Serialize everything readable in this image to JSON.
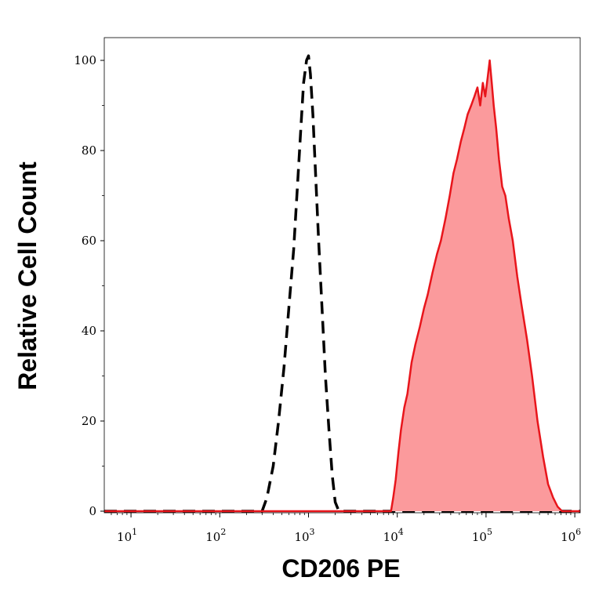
{
  "chart_data": {
    "type": "area",
    "xlabel": "CD206 PE",
    "ylabel": "Relative Cell Count",
    "x_scale": "log",
    "xlim": [
      5,
      1150000
    ],
    "ylim": [
      0,
      100
    ],
    "x_ticks": [
      {
        "value": 10,
        "base": "10",
        "exp": "1"
      },
      {
        "value": 100,
        "base": "10",
        "exp": "2"
      },
      {
        "value": 1000,
        "base": "10",
        "exp": "3"
      },
      {
        "value": 10000,
        "base": "10",
        "exp": "4"
      },
      {
        "value": 100000,
        "base": "10",
        "exp": "5"
      },
      {
        "value": 1000000,
        "base": "10",
        "exp": "6"
      }
    ],
    "y_ticks": [
      {
        "value": 0,
        "label": "0"
      },
      {
        "value": 20,
        "label": "20"
      },
      {
        "value": 40,
        "label": "40"
      },
      {
        "value": 60,
        "label": "60"
      },
      {
        "value": 80,
        "label": "80"
      },
      {
        "value": 100,
        "label": "100"
      }
    ],
    "grid": false,
    "legend": "none",
    "series": [
      {
        "style": "dashed",
        "color": "#000000",
        "fill": "none",
        "x": [
          5,
          300,
          340,
          400,
          460,
          530,
          600,
          680,
          750,
          820,
          880,
          950,
          1000,
          1050,
          1120,
          1200,
          1300,
          1420,
          1550,
          1700,
          1850,
          2000,
          2200,
          2500,
          1150000
        ],
        "y": [
          0,
          0,
          3,
          10,
          20,
          32,
          45,
          58,
          72,
          85,
          95,
          100,
          101,
          97,
          88,
          75,
          60,
          45,
          30,
          18,
          8,
          2,
          0,
          0,
          0
        ]
      },
      {
        "style": "solid",
        "color": "#e8151b",
        "fill": "#fb9a9c",
        "x": [
          5,
          8500,
          9000,
          9600,
          10300,
          11000,
          12000,
          13000,
          14500,
          16000,
          18000,
          20000,
          22000,
          25000,
          28000,
          31000,
          35000,
          39000,
          43000,
          47000,
          52000,
          57000,
          62000,
          68000,
          74000,
          80000,
          86000,
          92000,
          98000,
          104000,
          110000,
          116000,
          122000,
          130000,
          140000,
          152000,
          165000,
          180000,
          200000,
          225000,
          250000,
          290000,
          330000,
          380000,
          440000,
          500000,
          570000,
          640000,
          720000,
          780000,
          1150000
        ],
        "y": [
          0,
          0,
          3,
          7,
          13,
          18,
          23,
          26,
          33,
          37,
          41,
          45,
          48,
          53,
          57,
          60,
          65,
          70,
          75,
          78,
          82,
          85,
          88,
          90,
          92,
          94,
          90,
          95,
          92,
          96,
          100,
          95,
          90,
          85,
          78,
          72,
          70,
          65,
          60,
          52,
          46,
          38,
          30,
          20,
          12,
          6,
          3,
          1,
          0,
          0,
          0
        ]
      }
    ]
  }
}
